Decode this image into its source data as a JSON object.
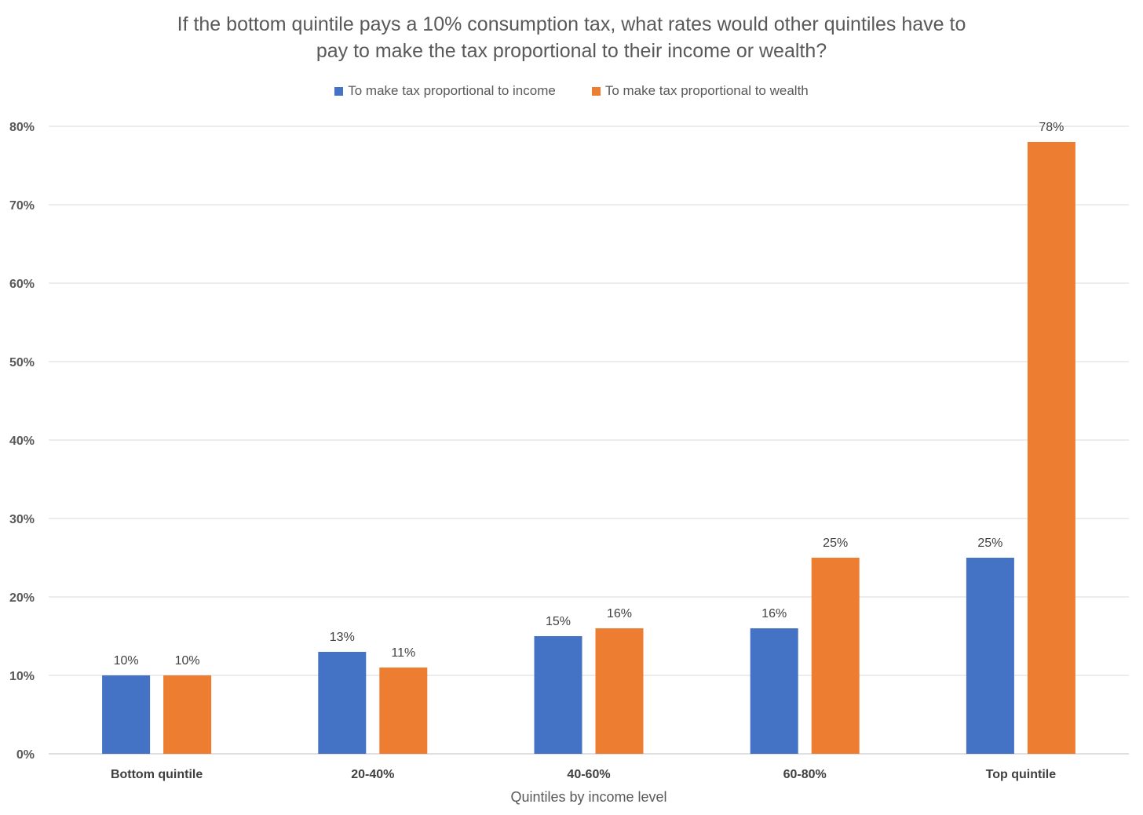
{
  "chart_data": {
    "type": "bar",
    "title_lines": [
      "If the bottom quintile pays a 10% consumption tax, what rates would other quintiles have to",
      "pay to make the tax proportional to their income or wealth?"
    ],
    "xlabel": "Quintiles by income level",
    "ylabel": "",
    "categories": [
      "Bottom quintile",
      "20-40%",
      "40-60%",
      "60-80%",
      "Top quintile"
    ],
    "series": [
      {
        "name": "To make tax proportional to income",
        "color": "#4472C4",
        "values": [
          10,
          13,
          15,
          16,
          25
        ],
        "labels": [
          "10%",
          "13%",
          "15%",
          "16%",
          "25%"
        ]
      },
      {
        "name": "To make tax proportional to wealth",
        "color": "#ED7D31",
        "values": [
          10,
          11,
          16,
          25,
          78
        ],
        "labels": [
          "10%",
          "11%",
          "16%",
          "25%",
          "78%"
        ]
      }
    ],
    "ylim": [
      0,
      80
    ],
    "yticks": [
      0,
      10,
      20,
      30,
      40,
      50,
      60,
      70,
      80
    ],
    "ytick_labels": [
      "0%",
      "10%",
      "20%",
      "30%",
      "40%",
      "50%",
      "60%",
      "70%",
      "80%"
    ],
    "grid": true,
    "legend_position": "top"
  }
}
